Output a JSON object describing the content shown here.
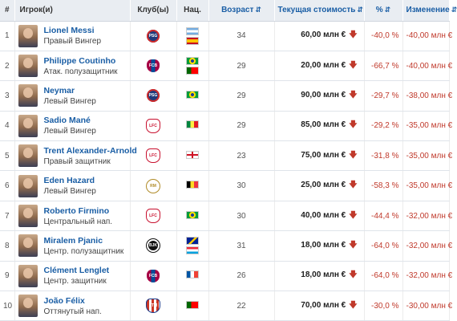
{
  "headers": {
    "num": "#",
    "player": "Игрок(и)",
    "club": "Клуб(ы)",
    "nat": "Нац.",
    "age": "Возраст",
    "value": "Текущая стоимость",
    "pct": "%",
    "change": "Изменение",
    "sort_arrows": "⇵"
  },
  "down_arrow": "🡇",
  "rows": [
    {
      "num": "1",
      "name": "Lionel Messi",
      "position": "Правый Вингер",
      "club": "PSG",
      "club_class": "club-psg",
      "flags": [
        "f-ar",
        "f-es"
      ],
      "age": "34",
      "value": "60,00 млн €",
      "pct": "-40,0 %",
      "change": "-40,00 млн €"
    },
    {
      "num": "2",
      "name": "Philippe Coutinho",
      "position": "Атак. полузащитник",
      "club": "FCB",
      "club_class": "club-fcb",
      "flags": [
        "f-br",
        "f-pt"
      ],
      "age": "29",
      "value": "20,00 млн €",
      "pct": "-66,7 %",
      "change": "-40,00 млн €"
    },
    {
      "num": "3",
      "name": "Neymar",
      "position": "Левый Вингер",
      "club": "PSG",
      "club_class": "club-psg",
      "flags": [
        "f-br"
      ],
      "age": "29",
      "value": "90,00 млн €",
      "pct": "-29,7 %",
      "change": "-38,00 млн €"
    },
    {
      "num": "4",
      "name": "Sadio Mané",
      "position": "Левый Вингер",
      "club": "LFC",
      "club_class": "club-lfc",
      "flags": [
        "f-sn"
      ],
      "age": "29",
      "value": "85,00 млн €",
      "pct": "-29,2 %",
      "change": "-35,00 млн €"
    },
    {
      "num": "5",
      "name": "Trent Alexander-Arnold",
      "position": "Правый защитник",
      "club": "LFC",
      "club_class": "club-lfc",
      "flags": [
        "f-en"
      ],
      "age": "23",
      "value": "75,00 млн €",
      "pct": "-31,8 %",
      "change": "-35,00 млн €"
    },
    {
      "num": "6",
      "name": "Eden Hazard",
      "position": "Левый Вингер",
      "club": "RM",
      "club_class": "club-rma",
      "flags": [
        "f-be"
      ],
      "age": "30",
      "value": "25,00 млн €",
      "pct": "-58,3 %",
      "change": "-35,00 млн €"
    },
    {
      "num": "7",
      "name": "Roberto Firmino",
      "position": "Центральный нап.",
      "club": "LFC",
      "club_class": "club-lfc",
      "flags": [
        "f-br"
      ],
      "age": "30",
      "value": "40,00 млн €",
      "pct": "-44,4 %",
      "change": "-32,00 млн €"
    },
    {
      "num": "8",
      "name": "Miralem Pjanic",
      "position": "Центр. полузащитник",
      "club": "BJK",
      "club_class": "club-bjk",
      "flags": [
        "f-ba",
        "f-lu"
      ],
      "age": "31",
      "value": "18,00 млн €",
      "pct": "-64,0 %",
      "change": "-32,00 млн €"
    },
    {
      "num": "9",
      "name": "Clément Lenglet",
      "position": "Центр. защитник",
      "club": "FCB",
      "club_class": "club-fcb",
      "flags": [
        "f-fr"
      ],
      "age": "26",
      "value": "18,00 млн €",
      "pct": "-64,0 %",
      "change": "-32,00 млн €"
    },
    {
      "num": "10",
      "name": "João Félix",
      "position": "Оттянутый нап.",
      "club": "ATM",
      "club_class": "club-atm",
      "flags": [
        "f-pt"
      ],
      "age": "22",
      "value": "70,00 млн €",
      "pct": "-30,0 %",
      "change": "-30,00 млн €"
    }
  ]
}
